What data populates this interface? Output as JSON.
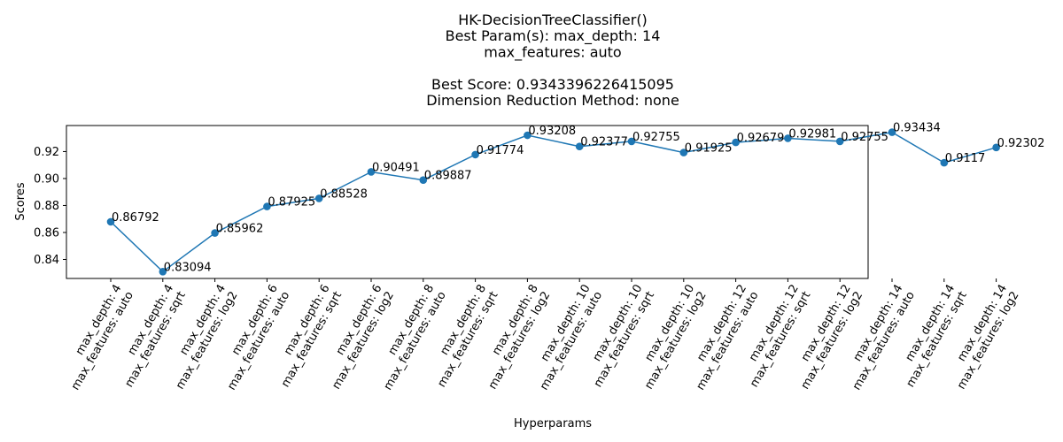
{
  "chart_data": {
    "type": "line",
    "title_lines": [
      "HK-DecisionTreeClassifier()",
      "Best Param(s): max_depth: 14",
      "max_features: auto",
      "",
      "Best Score: 0.9343396226415095",
      "Dimension Reduction Method: none"
    ],
    "xlabel": "Hyperparams",
    "ylabel": "Scores",
    "categories": [
      [
        "max_depth: 4",
        "max_features: auto"
      ],
      [
        "max_depth: 4",
        "max_features: sqrt"
      ],
      [
        "max_depth: 4",
        "max_features: log2"
      ],
      [
        "max_depth: 6",
        "max_features: auto"
      ],
      [
        "max_depth: 6",
        "max_features: sqrt"
      ],
      [
        "max_depth: 6",
        "max_features: log2"
      ],
      [
        "max_depth: 8",
        "max_features: auto"
      ],
      [
        "max_depth: 8",
        "max_features: sqrt"
      ],
      [
        "max_depth: 8",
        "max_features: log2"
      ],
      [
        "max_depth: 10",
        "max_features: auto"
      ],
      [
        "max_depth: 10",
        "max_features: sqrt"
      ],
      [
        "max_depth: 10",
        "max_features: log2"
      ],
      [
        "max_depth: 12",
        "max_features: auto"
      ],
      [
        "max_depth: 12",
        "max_features: sqrt"
      ],
      [
        "max_depth: 12",
        "max_features: log2"
      ],
      [
        "max_depth: 14",
        "max_features: auto"
      ],
      [
        "max_depth: 14",
        "max_features: sqrt"
      ],
      [
        "max_depth: 14",
        "max_features: log2"
      ]
    ],
    "values": [
      0.86792,
      0.83094,
      0.85962,
      0.87925,
      0.88528,
      0.90491,
      0.89887,
      0.91774,
      0.93208,
      0.92377,
      0.92755,
      0.91925,
      0.92679,
      0.92981,
      0.92755,
      0.93434,
      0.9117,
      0.92302
    ],
    "value_labels": [
      "0.86792",
      "0.83094",
      "0.85962",
      "0.87925",
      "0.88528",
      "0.90491",
      "0.89887",
      "0.91774",
      "0.93208",
      "0.92377",
      "0.92755",
      "0.91925",
      "0.92679",
      "0.92981",
      "0.92755",
      "0.93434",
      "0.9117",
      "0.92302"
    ],
    "yticks": [
      0.84,
      0.86,
      0.88,
      0.9,
      0.92
    ],
    "ytick_labels": [
      "0.84",
      "0.86",
      "0.88",
      "0.90",
      "0.92"
    ],
    "ylim": [
      0.8259,
      0.9393
    ],
    "grid": false,
    "line_color": "#1f77b4",
    "marker": "circle"
  }
}
